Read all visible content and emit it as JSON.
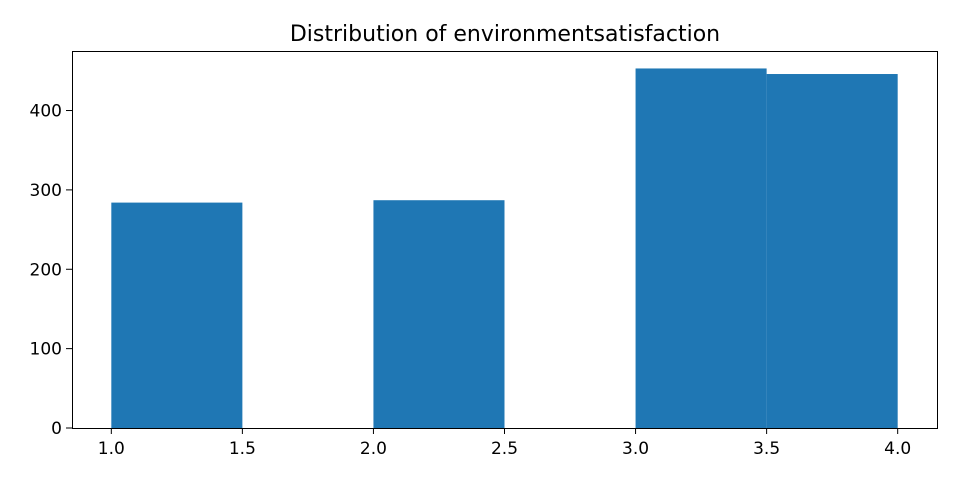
{
  "chart_data": {
    "type": "bar",
    "title": "Distribution of environmentsatisfaction",
    "xlabel": "",
    "ylabel": "",
    "bar_color": "#1f77b4",
    "xlim": [
      0.85,
      4.15
    ],
    "ylim": [
      0,
      475
    ],
    "bins": [
      {
        "start": 1.0,
        "end": 1.5,
        "count": 284
      },
      {
        "start": 2.0,
        "end": 2.5,
        "count": 287
      },
      {
        "start": 3.0,
        "end": 3.5,
        "count": 453
      },
      {
        "start": 3.5,
        "end": 4.0,
        "count": 446
      }
    ],
    "x_ticks": [
      1.0,
      1.5,
      2.0,
      2.5,
      3.0,
      3.5,
      4.0
    ],
    "x_tick_labels": [
      "1.0",
      "1.5",
      "2.0",
      "2.5",
      "3.0",
      "3.5",
      "4.0"
    ],
    "y_ticks": [
      0,
      100,
      200,
      300,
      400
    ],
    "y_tick_labels": [
      "0",
      "100",
      "200",
      "300",
      "400"
    ],
    "grid": false,
    "legend": "none"
  }
}
